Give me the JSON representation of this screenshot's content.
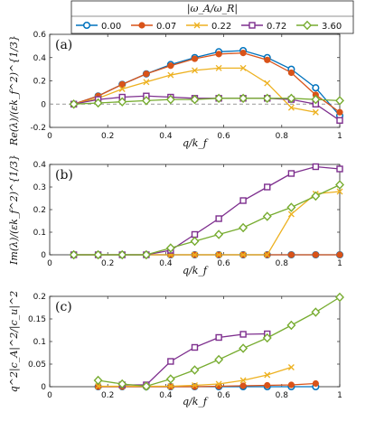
{
  "figure": {
    "legend": {
      "title": "|ω_A/ω_R|",
      "entries": [
        "0.00",
        "0.07",
        "0.22",
        "0.72",
        "3.60"
      ],
      "colors": [
        "#0072BD",
        "#D95319",
        "#EDB120",
        "#7E2F8E",
        "#77AC30"
      ],
      "markers": [
        "circle",
        "circle-filled",
        "x",
        "square",
        "diamond"
      ]
    },
    "shared_xlabel": "q/k_f"
  },
  "chart_data": [
    {
      "type": "line",
      "panel": "(a)",
      "ylabel": "Re(λ)/(εk_f^2)^{1/3}",
      "xlabel": "q/k_f",
      "xlim": [
        0,
        1
      ],
      "ylim": [
        -0.2,
        0.6
      ],
      "xticks": [
        "0",
        "0.2",
        "0.4",
        "0.6",
        "0.8",
        "1"
      ],
      "yticks": [
        "-0.2",
        "0",
        "0.2",
        "0.4",
        "0.6"
      ],
      "reference_line": {
        "y": 0,
        "style": "dashed"
      },
      "series": [
        {
          "name": "0.00",
          "x": [
            0.083,
            0.167,
            0.25,
            0.333,
            0.417,
            0.5,
            0.583,
            0.667,
            0.75,
            0.833,
            0.917,
            1.0
          ],
          "y": [
            0.0,
            0.07,
            0.17,
            0.26,
            0.34,
            0.4,
            0.45,
            0.46,
            0.4,
            0.3,
            0.14,
            -0.1
          ]
        },
        {
          "name": "0.07",
          "x": [
            0.083,
            0.167,
            0.25,
            0.333,
            0.417,
            0.5,
            0.583,
            0.667,
            0.75,
            0.833,
            0.917,
            1.0
          ],
          "y": [
            0.0,
            0.07,
            0.17,
            0.26,
            0.33,
            0.39,
            0.43,
            0.44,
            0.38,
            0.27,
            0.08,
            -0.07
          ]
        },
        {
          "name": "0.22",
          "x": [
            0.083,
            0.167,
            0.25,
            0.333,
            0.417,
            0.5,
            0.583,
            0.667,
            0.75,
            0.833,
            0.917
          ],
          "y": [
            0.0,
            0.05,
            0.13,
            0.19,
            0.25,
            0.29,
            0.31,
            0.31,
            0.18,
            -0.03,
            -0.07
          ]
        },
        {
          "name": "0.72",
          "x": [
            0.083,
            0.167,
            0.25,
            0.333,
            0.417,
            0.5,
            0.583,
            0.667,
            0.75,
            0.833,
            0.917,
            1.0
          ],
          "y": [
            0.0,
            0.04,
            0.06,
            0.07,
            0.06,
            0.05,
            0.05,
            0.05,
            0.05,
            0.04,
            0.0,
            -0.14
          ]
        },
        {
          "name": "3.60",
          "x": [
            0.083,
            0.167,
            0.25,
            0.333,
            0.417,
            0.5,
            0.583,
            0.667,
            0.75,
            0.833,
            0.917,
            1.0
          ],
          "y": [
            0.0,
            0.01,
            0.02,
            0.03,
            0.04,
            0.04,
            0.05,
            0.05,
            0.05,
            0.05,
            0.04,
            0.03
          ]
        }
      ]
    },
    {
      "type": "line",
      "panel": "(b)",
      "ylabel": "Im(λ)/(εk_f^2)^{1/3}",
      "xlabel": "q/k_f",
      "xlim": [
        0,
        1
      ],
      "ylim": [
        0,
        0.4
      ],
      "xticks": [
        "0",
        "0.2",
        "0.4",
        "0.6",
        "0.8",
        "1"
      ],
      "yticks": [
        "0",
        "0.1",
        "0.2",
        "0.3",
        "0.4"
      ],
      "series": [
        {
          "name": "0.00",
          "x": [
            0.083,
            0.167,
            0.25,
            0.333,
            0.417,
            0.5,
            0.583,
            0.667,
            0.75,
            0.833,
            0.917,
            1.0
          ],
          "y": [
            0,
            0,
            0,
            0,
            0,
            0,
            0,
            0,
            0,
            0,
            0,
            0
          ]
        },
        {
          "name": "0.07",
          "x": [
            0.083,
            0.167,
            0.25,
            0.333,
            0.417,
            0.5,
            0.583,
            0.667,
            0.75,
            0.833,
            0.917,
            1.0
          ],
          "y": [
            0,
            0,
            0,
            0,
            0,
            0,
            0,
            0,
            0,
            0,
            0,
            0
          ]
        },
        {
          "name": "0.22",
          "x": [
            0.083,
            0.167,
            0.25,
            0.333,
            0.417,
            0.5,
            0.583,
            0.667,
            0.75,
            0.833,
            0.917,
            1.0
          ],
          "y": [
            0,
            0,
            0,
            0,
            0,
            0,
            0,
            0,
            0,
            0.18,
            0.27,
            0.28
          ]
        },
        {
          "name": "0.72",
          "x": [
            0.083,
            0.167,
            0.25,
            0.333,
            0.417,
            0.5,
            0.583,
            0.667,
            0.75,
            0.833,
            0.917,
            1.0
          ],
          "y": [
            0,
            0,
            0,
            0,
            0.02,
            0.09,
            0.16,
            0.24,
            0.3,
            0.36,
            0.39,
            0.38
          ]
        },
        {
          "name": "3.60",
          "x": [
            0.083,
            0.167,
            0.25,
            0.333,
            0.417,
            0.5,
            0.583,
            0.667,
            0.75,
            0.833,
            0.917,
            1.0
          ],
          "y": [
            0,
            0,
            0,
            0,
            0.03,
            0.06,
            0.09,
            0.12,
            0.17,
            0.21,
            0.26,
            0.31
          ]
        }
      ]
    },
    {
      "type": "line",
      "panel": "(c)",
      "ylabel": "q^2|c_A|^2/|c_u|^2",
      "xlabel": "q/k_f",
      "xlim": [
        0,
        1
      ],
      "ylim": [
        0,
        0.2
      ],
      "xticks": [
        "0",
        "0.2",
        "0.4",
        "0.6",
        "0.8",
        "1"
      ],
      "yticks": [
        "0",
        "0.05",
        "0.1",
        "0.15",
        "0.2"
      ],
      "series": [
        {
          "name": "0.00",
          "x": [
            0.167,
            0.25,
            0.333,
            0.417,
            0.5,
            0.583,
            0.667,
            0.75,
            0.833,
            0.917
          ],
          "y": [
            0,
            0,
            0,
            0,
            0,
            0,
            0,
            0,
            0,
            0
          ]
        },
        {
          "name": "0.07",
          "x": [
            0.167,
            0.25,
            0.333,
            0.417,
            0.5,
            0.583,
            0.667,
            0.75,
            0.833,
            0.917
          ],
          "y": [
            0,
            0,
            0,
            0,
            0,
            0.001,
            0.002,
            0.003,
            0.004,
            0.007
          ]
        },
        {
          "name": "0.22",
          "x": [
            0.167,
            0.25,
            0.333,
            0.417,
            0.5,
            0.583,
            0.667,
            0.75,
            0.833
          ],
          "y": [
            0.001,
            0.001,
            0.001,
            0.001,
            0.003,
            0.006,
            0.014,
            0.026,
            0.043
          ]
        },
        {
          "name": "0.72",
          "x": [
            0.25,
            0.333,
            0.417,
            0.5,
            0.583,
            0.667,
            0.75
          ],
          "y": [
            0.004,
            0.004,
            0.056,
            0.087,
            0.109,
            0.116,
            0.117
          ]
        },
        {
          "name": "3.60",
          "x": [
            0.167,
            0.25,
            0.333,
            0.417,
            0.5,
            0.583,
            0.667,
            0.75,
            0.833,
            0.917,
            1.0
          ],
          "y": [
            0.014,
            0.006,
            0.001,
            0.017,
            0.037,
            0.06,
            0.085,
            0.108,
            0.136,
            0.165,
            0.198
          ]
        }
      ]
    }
  ]
}
